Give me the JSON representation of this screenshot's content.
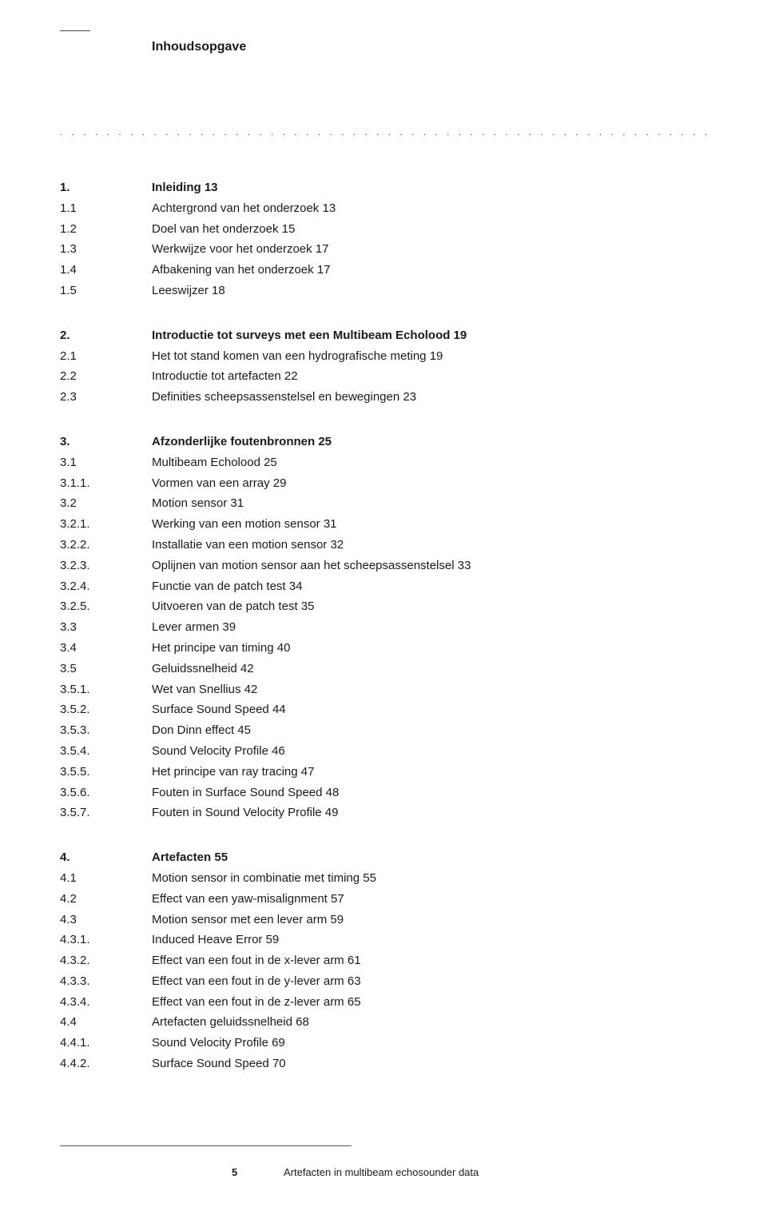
{
  "header": {
    "title": "Inhoudsopgave"
  },
  "divider": ". . . . . . . . . . . . . . . . . . . . . . . . . . . . . . . . . . . . . . . . . . . . . . . . . . . . . . . . . . . . . . . . . . . . . . . . . . . . . . . . . . . . . . . . . . .",
  "sections": [
    {
      "head": {
        "num": "1.",
        "txt": "Inleiding 13"
      },
      "items": [
        {
          "num": "1.1",
          "txt": "Achtergrond van het onderzoek 13"
        },
        {
          "num": "1.2",
          "txt": "Doel van het onderzoek 15"
        },
        {
          "num": "1.3",
          "txt": "Werkwijze voor het onderzoek 17"
        },
        {
          "num": "1.4",
          "txt": "Afbakening van het onderzoek 17"
        },
        {
          "num": "1.5",
          "txt": "Leeswijzer 18"
        }
      ]
    },
    {
      "head": {
        "num": "2.",
        "txt": "Introductie tot surveys met een Multibeam Echolood 19"
      },
      "items": [
        {
          "num": "2.1",
          "txt": "Het tot stand komen van een hydrografische meting 19"
        },
        {
          "num": "2.2",
          "txt": "Introductie tot artefacten 22"
        },
        {
          "num": "2.3",
          "txt": "Definities scheepsassenstelsel en bewegingen 23"
        }
      ]
    },
    {
      "head": {
        "num": "3.",
        "txt": "Afzonderlijke foutenbronnen 25"
      },
      "items": [
        {
          "num": "3.1",
          "txt": "Multibeam Echolood 25"
        },
        {
          "num": "3.1.1.",
          "txt": "Vormen van een array 29"
        },
        {
          "num": "3.2",
          "txt": "Motion sensor 31"
        },
        {
          "num": "3.2.1.",
          "txt": "Werking van een motion sensor 31"
        },
        {
          "num": "3.2.2.",
          "txt": "Installatie van een motion sensor 32"
        },
        {
          "num": "3.2.3.",
          "txt": "Oplijnen van motion sensor aan het scheepsassenstelsel 33"
        },
        {
          "num": "3.2.4.",
          "txt": "Functie van de patch test 34"
        },
        {
          "num": "3.2.5.",
          "txt": "Uitvoeren van de patch test 35"
        },
        {
          "num": "3.3",
          "txt": "Lever armen 39"
        },
        {
          "num": "3.4",
          "txt": "Het principe van timing 40"
        },
        {
          "num": "3.5",
          "txt": "Geluidssnelheid 42"
        },
        {
          "num": "3.5.1.",
          "txt": "Wet van Snellius 42"
        },
        {
          "num": "3.5.2.",
          "txt": "Surface Sound Speed 44"
        },
        {
          "num": "3.5.3.",
          "txt": "Don Dinn effect 45"
        },
        {
          "num": "3.5.4.",
          "txt": "Sound Velocity Profile 46"
        },
        {
          "num": "3.5.5.",
          "txt": "Het principe van ray tracing 47"
        },
        {
          "num": "3.5.6.",
          "txt": "Fouten in Surface Sound Speed 48"
        },
        {
          "num": "3.5.7.",
          "txt": "Fouten in Sound Velocity Profile 49"
        }
      ]
    },
    {
      "head": {
        "num": "4.",
        "txt": "Artefacten 55"
      },
      "items": [
        {
          "num": "4.1",
          "txt": "Motion sensor in combinatie met timing 55"
        },
        {
          "num": "4.2",
          "txt": "Effect van een yaw-misalignment 57"
        },
        {
          "num": "4.3",
          "txt": "Motion sensor met een lever arm 59"
        },
        {
          "num": "4.3.1.",
          "txt": "Induced Heave Error 59"
        },
        {
          "num": "4.3.2.",
          "txt": "Effect van een fout in de x-lever arm 61"
        },
        {
          "num": "4.3.3.",
          "txt": "Effect van een fout in de y-lever arm 63"
        },
        {
          "num": "4.3.4.",
          "txt": "Effect van een fout in de z-lever arm 65"
        },
        {
          "num": "4.4",
          "txt": "Artefacten geluidssnelheid 68"
        },
        {
          "num": "4.4.1.",
          "txt": "Sound Velocity Profile 69"
        },
        {
          "num": "4.4.2.",
          "txt": "Surface Sound Speed 70"
        }
      ]
    }
  ],
  "footer": {
    "page": "5",
    "text": "Artefacten in multibeam echosounder data"
  }
}
